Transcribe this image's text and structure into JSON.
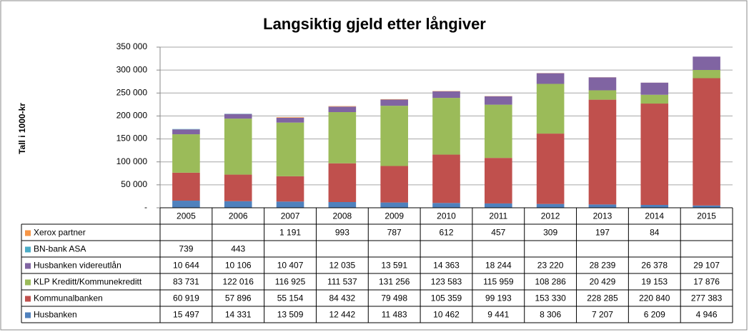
{
  "chart_data": {
    "type": "stacked_bar",
    "title": "Langsiktig  gjeld etter långiver",
    "y_label": "Tall i 1000-kr",
    "categories": [
      "2005",
      "2006",
      "2007",
      "2008",
      "2009",
      "2010",
      "2011",
      "2012",
      "2013",
      "2014",
      "2015"
    ],
    "series": [
      {
        "name": "Husbanken",
        "color": "#4f81bd",
        "values": [
          15497,
          14331,
          13509,
          12442,
          11483,
          10462,
          9441,
          8306,
          7207,
          6209,
          4946
        ],
        "value_labels": [
          "15 497",
          "14 331",
          "13 509",
          "12 442",
          "11 483",
          "10 462",
          "9 441",
          "8 306",
          "7 207",
          "6 209",
          "4 946"
        ]
      },
      {
        "name": "Kommunalbanken",
        "color": "#c0504d",
        "values": [
          60919,
          57896,
          55154,
          84432,
          79498,
          105359,
          99193,
          153330,
          228285,
          220840,
          277383
        ],
        "value_labels": [
          "60 919",
          "57 896",
          "55 154",
          "84 432",
          "79 498",
          "105 359",
          "99 193",
          "153 330",
          "228 285",
          "220 840",
          "277 383"
        ]
      },
      {
        "name": "KLP Kreditt/Kommunekreditt",
        "color": "#9bbb59",
        "values": [
          83731,
          122016,
          116925,
          111537,
          131256,
          123583,
          115959,
          108286,
          20429,
          19153,
          17876
        ],
        "value_labels": [
          "83 731",
          "122 016",
          "116 925",
          "111 537",
          "131 256",
          "123 583",
          "115 959",
          "108 286",
          "20 429",
          "19 153",
          "17 876"
        ]
      },
      {
        "name": "Husbanken videreutlån",
        "color": "#8064a2",
        "values": [
          10644,
          10106,
          10407,
          12035,
          13591,
          14363,
          18244,
          23220,
          28239,
          26378,
          29107
        ],
        "value_labels": [
          "10 644",
          "10 106",
          "10 407",
          "12 035",
          "13 591",
          "14 363",
          "18 244",
          "23 220",
          "28 239",
          "26 378",
          "29 107"
        ]
      },
      {
        "name": "BN-bank ASA",
        "color": "#4bacc6",
        "values": [
          739,
          443,
          null,
          null,
          null,
          null,
          null,
          null,
          null,
          null,
          null
        ],
        "value_labels": [
          "739",
          "443",
          null,
          null,
          null,
          null,
          null,
          null,
          null,
          null,
          null
        ]
      },
      {
        "name": "Xerox partner",
        "color": "#f79646",
        "values": [
          null,
          null,
          1191,
          993,
          787,
          612,
          457,
          309,
          197,
          84,
          null
        ],
        "value_labels": [
          null,
          null,
          "1 191",
          "993",
          "787",
          "612",
          "457",
          "309",
          "197",
          "84",
          null
        ]
      }
    ],
    "ylim": [
      0,
      350000
    ],
    "yticks": [
      {
        "value": 0,
        "label": "-"
      },
      {
        "value": 50000,
        "label": "50 000"
      },
      {
        "value": 100000,
        "label": "100 000"
      },
      {
        "value": 150000,
        "label": "150 000"
      },
      {
        "value": 200000,
        "label": "200 000"
      },
      {
        "value": 250000,
        "label": "250 000"
      },
      {
        "value": 300000,
        "label": "300 000"
      },
      {
        "value": 350000,
        "label": "350 000"
      }
    ],
    "grid": true
  }
}
